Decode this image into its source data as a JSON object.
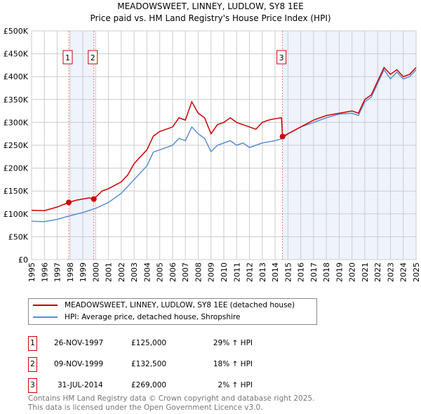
{
  "chart_data": {
    "type": "line",
    "title": "MEADOWSWEET, LINNEY, LUDLOW, SY8 1EE",
    "subtitle": "Price paid vs. HM Land Registry's House Price Index (HPI)",
    "xlim": [
      1995,
      2025
    ],
    "ylim": [
      0,
      500000
    ],
    "x_ticks": [
      "1995",
      "1996",
      "1997",
      "1998",
      "1999",
      "2000",
      "2001",
      "2002",
      "2003",
      "2004",
      "2005",
      "2006",
      "2007",
      "2008",
      "2009",
      "2010",
      "2011",
      "2012",
      "2013",
      "2014",
      "2015",
      "2016",
      "2017",
      "2018",
      "2019",
      "2020",
      "2021",
      "2022",
      "2023",
      "2024",
      "2025"
    ],
    "y_ticks": [
      {
        "v": 0,
        "l": "£0"
      },
      {
        "v": 50000,
        "l": "£50K"
      },
      {
        "v": 100000,
        "l": "£100K"
      },
      {
        "v": 150000,
        "l": "£150K"
      },
      {
        "v": 200000,
        "l": "£200K"
      },
      {
        "v": 250000,
        "l": "£250K"
      },
      {
        "v": 300000,
        "l": "£300K"
      },
      {
        "v": 350000,
        "l": "£350K"
      },
      {
        "v": 400000,
        "l": "£400K"
      },
      {
        "v": 450000,
        "l": "£450K"
      },
      {
        "v": 500000,
        "l": "£500K"
      }
    ],
    "grid": true,
    "shaded_ranges": [
      [
        1998.0,
        1999.86
      ],
      [
        2014.58,
        2025
      ]
    ],
    "series": [
      {
        "name": "MEADOWSWEET, LINNEY, LUDLOW, SY8 1EE (detached house)",
        "color": "#cc0000",
        "x": [
          1995,
          1996,
          1997,
          1997.9,
          1998.5,
          1999.5,
          1999.86,
          2000.5,
          2001,
          2002,
          2002.5,
          2003,
          2003.5,
          2004,
          2004.5,
          2005,
          2005.5,
          2006,
          2006.5,
          2007,
          2007.5,
          2008,
          2008.5,
          2009,
          2009.5,
          2010,
          2010.5,
          2011,
          2011.5,
          2012,
          2012.5,
          2013,
          2013.5,
          2014,
          2014.5,
          2014.58,
          2015,
          2016,
          2017,
          2018,
          2019,
          2020,
          2020.5,
          2021,
          2021.5,
          2022,
          2022.5,
          2023,
          2023.5,
          2024,
          2024.5,
          2025
        ],
        "y": [
          108000,
          107000,
          115000,
          125000,
          130000,
          135000,
          132500,
          150000,
          155000,
          170000,
          185000,
          210000,
          225000,
          240000,
          270000,
          280000,
          285000,
          290000,
          310000,
          305000,
          345000,
          320000,
          310000,
          275000,
          295000,
          300000,
          310000,
          300000,
          295000,
          290000,
          285000,
          300000,
          305000,
          308000,
          310000,
          269000,
          275000,
          290000,
          305000,
          315000,
          320000,
          325000,
          320000,
          350000,
          360000,
          390000,
          420000,
          405000,
          415000,
          400000,
          405000,
          420000
        ]
      },
      {
        "name": "HPI: Average price, detached house, Shropshire",
        "color": "#5b8ed6",
        "x": [
          1995,
          1996,
          1997,
          1998,
          1999,
          2000,
          2001,
          2002,
          2003,
          2004,
          2004.5,
          2005,
          2006,
          2006.5,
          2007,
          2007.5,
          2008,
          2008.5,
          2009,
          2009.5,
          2010,
          2010.5,
          2011,
          2011.5,
          2012,
          2012.5,
          2013,
          2014,
          2014.6,
          2015,
          2016,
          2017,
          2018,
          2019,
          2020,
          2020.5,
          2021,
          2021.5,
          2022,
          2022.5,
          2023,
          2023.5,
          2024,
          2024.5,
          2025
        ],
        "y": [
          84000,
          83000,
          88000,
          96000,
          103000,
          112000,
          125000,
          145000,
          175000,
          205000,
          235000,
          240000,
          250000,
          265000,
          260000,
          290000,
          275000,
          265000,
          236000,
          250000,
          255000,
          260000,
          250000,
          255000,
          245000,
          250000,
          255000,
          260000,
          265000,
          275000,
          290000,
          300000,
          310000,
          318000,
          320000,
          315000,
          345000,
          355000,
          385000,
          415000,
          395000,
          410000,
          395000,
          400000,
          415000
        ]
      }
    ],
    "sales": [
      {
        "id": "1",
        "x": 1997.9,
        "y": 125000,
        "date": "26-NOV-1997",
        "price": "£125,000",
        "hpi": "29% ↑ HPI"
      },
      {
        "id": "2",
        "x": 1999.86,
        "y": 132500,
        "date": "09-NOV-1999",
        "price": "£132,500",
        "hpi": "18% ↑ HPI"
      },
      {
        "id": "3",
        "x": 2014.58,
        "y": 269000,
        "date": "31-JUL-2014",
        "price": "£269,000",
        "hpi": "2% ↑ HPI"
      }
    ]
  },
  "footer": {
    "line1": "Contains HM Land Registry data © Crown copyright and database right 2025.",
    "line2": "This data is licensed under the Open Government Licence v3.0."
  }
}
